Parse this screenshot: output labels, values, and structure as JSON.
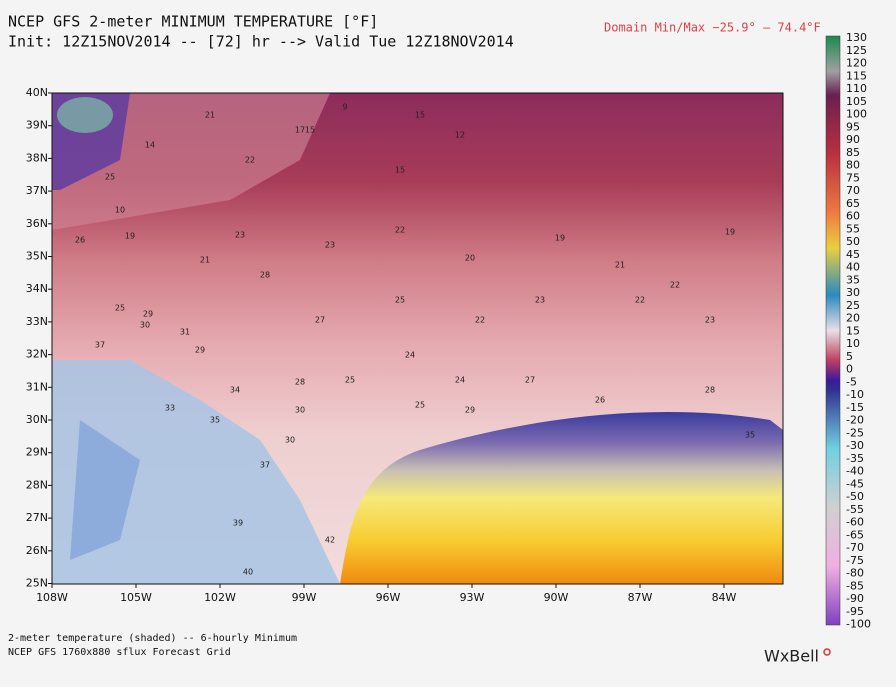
{
  "header": {
    "title": "NCEP GFS 2-meter MINIMUM TEMPERATURE [°F]",
    "init": "Init: 12Z15NOV2014 -- [72] hr --> Valid Tue 12Z18NOV2014",
    "domain_minmax": "Domain Min/Max −25.9° — 74.4°F"
  },
  "map": {
    "lat_labels": [
      "40N",
      "39N",
      "38N",
      "37N",
      "36N",
      "35N",
      "34N",
      "33N",
      "32N",
      "31N",
      "30N",
      "29N",
      "28N",
      "27N",
      "26N",
      "25N"
    ],
    "lon_labels": [
      "108W",
      "105W",
      "102W",
      "99W",
      "96W",
      "93W",
      "90W",
      "87W",
      "84W"
    ],
    "stations": [
      "21",
      "22",
      "17",
      "15",
      "9",
      "12",
      "15",
      "14",
      "15",
      "10",
      "25",
      "19",
      "26",
      "23",
      "23",
      "22",
      "21",
      "19",
      "20",
      "21",
      "28",
      "25",
      "29",
      "31",
      "30",
      "25",
      "22",
      "22",
      "23",
      "24",
      "27",
      "24",
      "25",
      "28",
      "30",
      "34",
      "35",
      "37",
      "39",
      "42",
      "40",
      "33",
      "29",
      "25",
      "27",
      "26",
      "30",
      "28",
      "35",
      "22",
      "19",
      "23",
      "29",
      "37"
    ]
  },
  "colorbar": {
    "labels": [
      "130",
      "125",
      "120",
      "115",
      "110",
      "105",
      "100",
      "95",
      "90",
      "85",
      "80",
      "75",
      "70",
      "65",
      "60",
      "55",
      "50",
      "45",
      "40",
      "35",
      "30",
      "25",
      "20",
      "15",
      "10",
      "5",
      "0",
      "-5",
      "-10",
      "-15",
      "-20",
      "-25",
      "-30",
      "-35",
      "-40",
      "-45",
      "-50",
      "-55",
      "-60",
      "-65",
      "-70",
      "-75",
      "-80",
      "-85",
      "-90",
      "-95",
      "-100"
    ]
  },
  "footer": {
    "line1": "2-meter temperature (shaded) -- 6-hourly Minimum",
    "line2": "NCEP GFS 1760x880 sflux Forecast Grid",
    "logo": "WxBell"
  }
}
